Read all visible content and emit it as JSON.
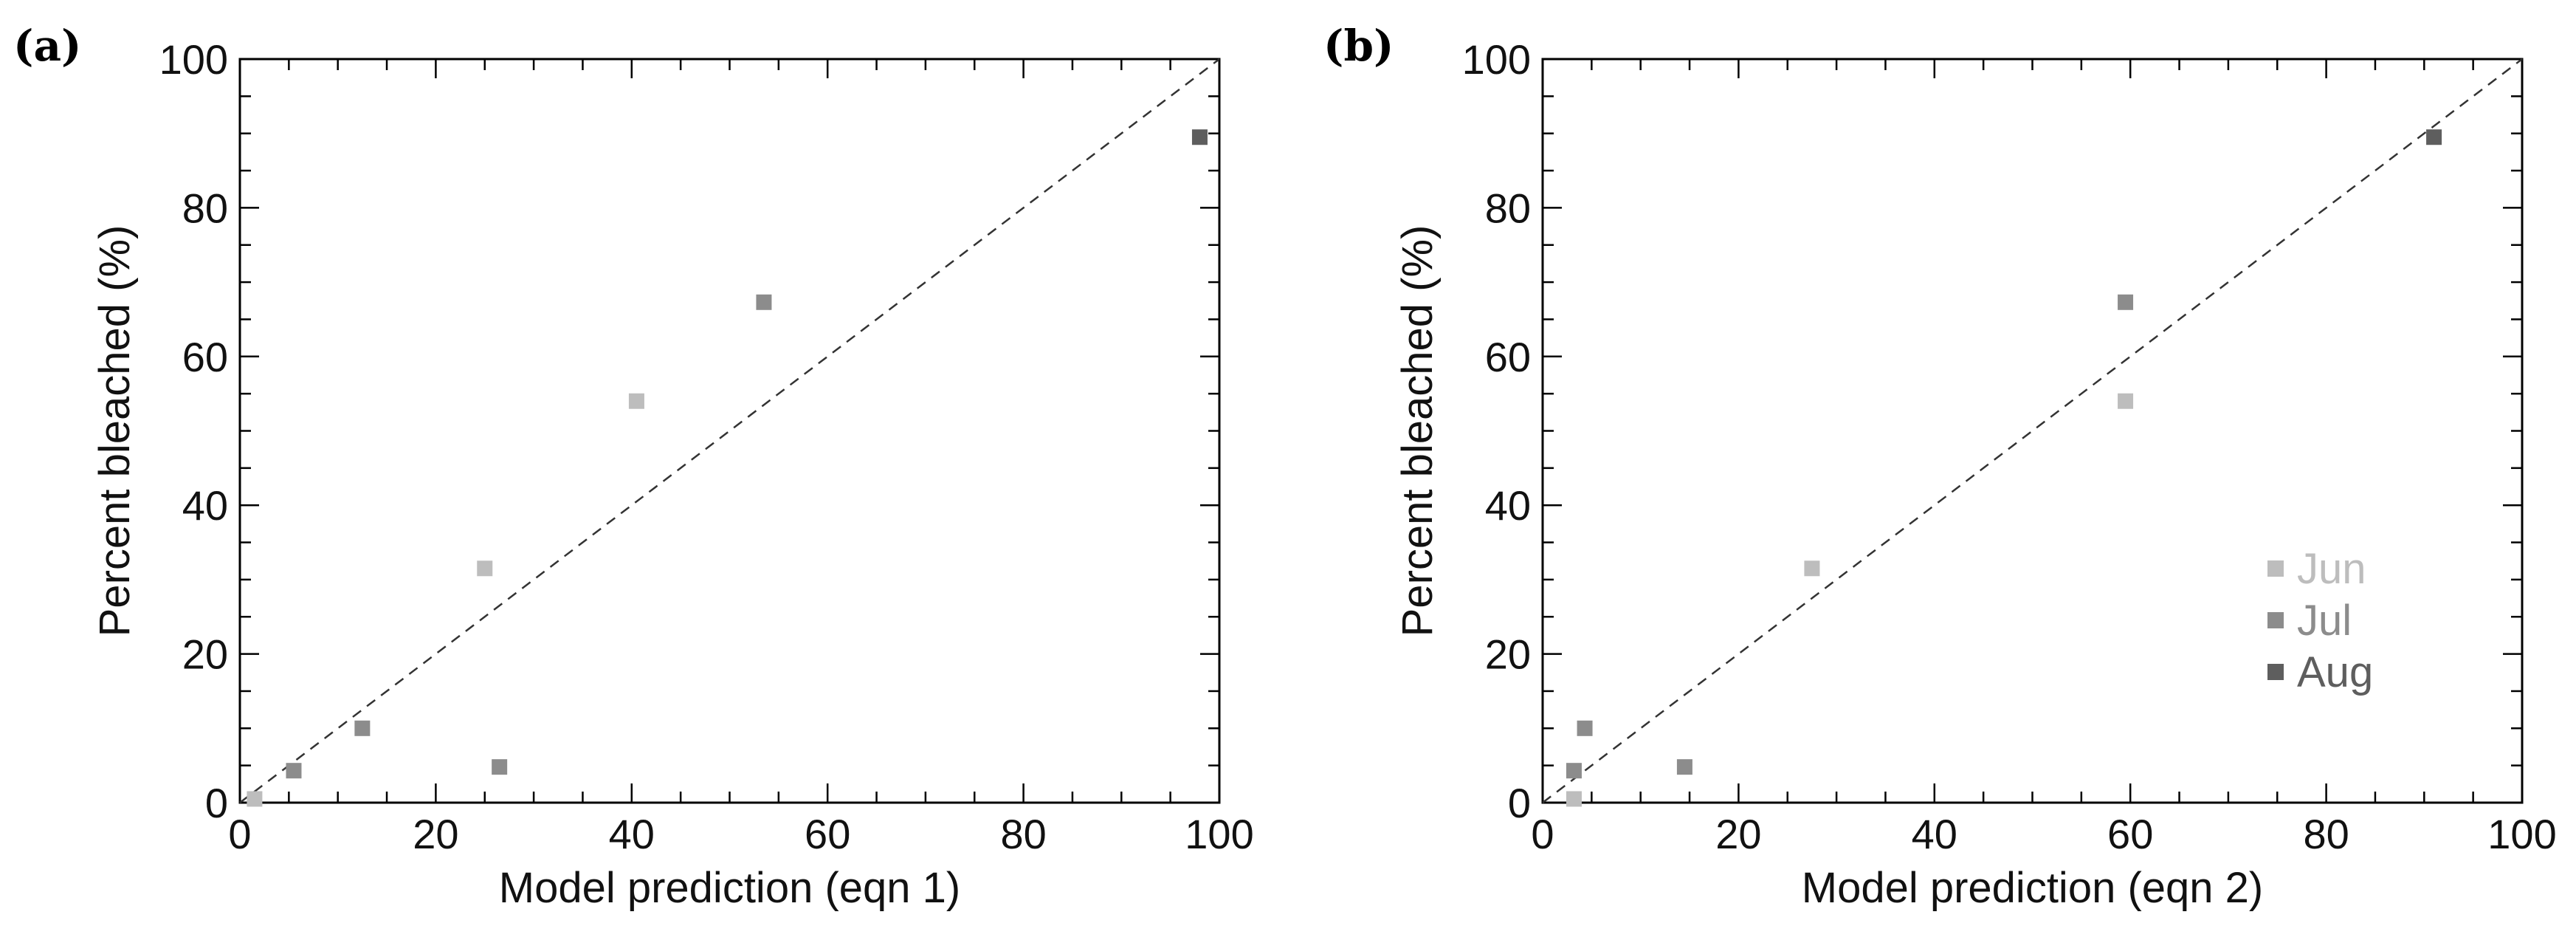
{
  "chart_data": [
    {
      "type": "scatter",
      "panel_label": "(a)",
      "xlabel": "Model prediction (eqn 1)",
      "ylabel": "Percent bleached (%)",
      "xlim": [
        0,
        100
      ],
      "ylim": [
        0,
        100
      ],
      "xticks": [
        "0",
        "20",
        "40",
        "60",
        "80",
        "100"
      ],
      "yticks": [
        "0",
        "20",
        "40",
        "60",
        "80",
        "100"
      ],
      "reference_line": "y = x (dashed)",
      "legend": null,
      "series": [
        {
          "name": "Jun",
          "color": "#bdbdbd",
          "points": [
            [
              1.5,
              0.5
            ],
            [
              25,
              31.5
            ],
            [
              40.5,
              54
            ]
          ]
        },
        {
          "name": "Jul",
          "color": "#8c8c8c",
          "points": [
            [
              5.5,
              4.3
            ],
            [
              12.5,
              10
            ],
            [
              26.5,
              4.8
            ],
            [
              53.5,
              67.3
            ]
          ]
        },
        {
          "name": "Aug",
          "color": "#5e5e5e",
          "points": [
            [
              98,
              89.5
            ]
          ]
        }
      ]
    },
    {
      "type": "scatter",
      "panel_label": "(b)",
      "xlabel": "Model prediction (eqn 2)",
      "ylabel": "Percent bleached (%)",
      "xlim": [
        0,
        100
      ],
      "ylim": [
        0,
        100
      ],
      "xticks": [
        "0",
        "20",
        "40",
        "60",
        "80",
        "100"
      ],
      "yticks": [
        "0",
        "20",
        "40",
        "60",
        "80",
        "100"
      ],
      "reference_line": "y = x (dashed)",
      "legend": {
        "placement": "right",
        "entries": [
          "Jun",
          "Jul",
          "Aug"
        ]
      },
      "series": [
        {
          "name": "Jun",
          "color": "#bdbdbd",
          "points": [
            [
              3.2,
              0.5
            ],
            [
              27.5,
              31.5
            ],
            [
              59.5,
              54
            ]
          ]
        },
        {
          "name": "Jul",
          "color": "#8c8c8c",
          "points": [
            [
              3.2,
              4.3
            ],
            [
              4.3,
              10
            ],
            [
              14.5,
              4.8
            ],
            [
              59.5,
              67.3
            ]
          ]
        },
        {
          "name": "Aug",
          "color": "#5e5e5e",
          "points": [
            [
              91,
              89.5
            ]
          ]
        }
      ]
    }
  ]
}
